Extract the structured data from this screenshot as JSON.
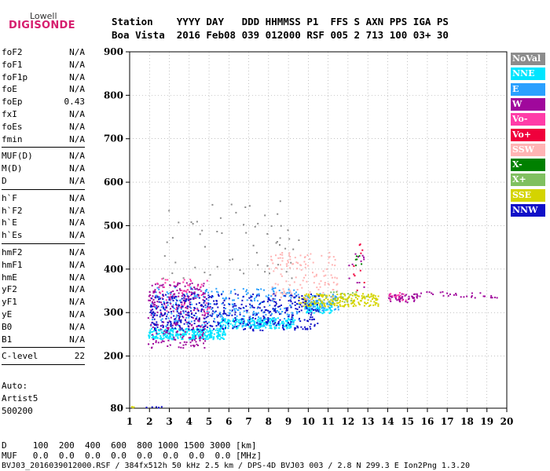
{
  "logo": {
    "top": "Lowell",
    "bottom": "DIGISONDE"
  },
  "header": {
    "row1": "Station    YYYY DAY   DDD HHMMSS P1  FFS S AXN PPS IGA PS",
    "row2": "Boa Vista  2016 Feb08 039 012000 RSF 005 2 713 100 03+ 30"
  },
  "params": [
    {
      "group": [
        {
          "name": "foF2",
          "value": "N/A"
        },
        {
          "name": "foF1",
          "value": "N/A"
        },
        {
          "name": "foF1p",
          "value": "N/A"
        },
        {
          "name": "foE",
          "value": "N/A"
        },
        {
          "name": "foEp",
          "value": "0.43"
        },
        {
          "name": "fxI",
          "value": "N/A"
        },
        {
          "name": "foEs",
          "value": "N/A"
        },
        {
          "name": "fmin",
          "value": "N/A"
        }
      ]
    },
    {
      "group": [
        {
          "name": "MUF(D)",
          "value": "N/A"
        },
        {
          "name": "M(D)",
          "value": "N/A"
        },
        {
          "name": "D",
          "value": "N/A"
        }
      ]
    },
    {
      "group": [
        {
          "name": "h`F",
          "value": "N/A"
        },
        {
          "name": "h`F2",
          "value": "N/A"
        },
        {
          "name": "h`E",
          "value": "N/A"
        },
        {
          "name": "h`Es",
          "value": "N/A"
        }
      ]
    },
    {
      "group": [
        {
          "name": "hmF2",
          "value": "N/A"
        },
        {
          "name": "hmF1",
          "value": "N/A"
        },
        {
          "name": "hmE",
          "value": "N/A"
        },
        {
          "name": "yF2",
          "value": "N/A"
        },
        {
          "name": "yF1",
          "value": "N/A"
        },
        {
          "name": "yE",
          "value": "N/A"
        },
        {
          "name": "B0",
          "value": "N/A"
        },
        {
          "name": "B1",
          "value": "N/A"
        }
      ]
    },
    {
      "group": [
        {
          "name": "C-level",
          "value": "22"
        }
      ]
    }
  ],
  "auto": {
    "line1": "Auto:",
    "line2": "Artist5",
    "line3": "500200"
  },
  "legend": [
    {
      "label": "NoVal",
      "bg": "#8c8c8c",
      "fg": "#ffffff"
    },
    {
      "label": "NNE",
      "bg": "#00e5ff",
      "fg": "#ffffff"
    },
    {
      "label": "E",
      "bg": "#2aa0ff",
      "fg": "#ffffff"
    },
    {
      "label": "W",
      "bg": "#a0089c",
      "fg": "#ffffff"
    },
    {
      "label": "Vo-",
      "bg": "#ff3ca8",
      "fg": "#ffffff"
    },
    {
      "label": "Vo+",
      "bg": "#f0003c",
      "fg": "#ffffff"
    },
    {
      "label": "SSW",
      "bg": "#ffb4b4",
      "fg": "#ffffff"
    },
    {
      "label": "X-",
      "bg": "#008000",
      "fg": "#ffffff"
    },
    {
      "label": "X+",
      "bg": "#80c060",
      "fg": "#ffffff"
    },
    {
      "label": "SSE",
      "bg": "#d4d400",
      "fg": "#ffffff"
    },
    {
      "label": "NNW",
      "bg": "#1010c8",
      "fg": "#ffffff"
    }
  ],
  "footer": {
    "line1": "D     100  200  400  600  800 1000 1500 3000 [km]",
    "line2": "MUF   0.0  0.0  0.0  0.0  0.0  0.0  0.0  0.0 [MHz]",
    "line3": "BVJ03_2016039012000.RSF / 384fx512h 50 kHz 2.5 km / DPS-4D BVJ03 003 / 2.8 N 299.3 E Ion2Png 1.3.20"
  },
  "chart_data": {
    "type": "scatter",
    "title": "",
    "xlabel": "",
    "ylabel": "",
    "xlim": [
      1,
      20
    ],
    "ylim": [
      80,
      900
    ],
    "x_ticks": [
      1,
      2,
      3,
      4,
      5,
      6,
      7,
      8,
      9,
      10,
      11,
      12,
      13,
      14,
      15,
      16,
      17,
      18,
      19,
      20
    ],
    "y_ticks": [
      80,
      200,
      300,
      400,
      500,
      600,
      700,
      800,
      900
    ],
    "grid": "dotted",
    "legend_placement": "right",
    "series": [
      {
        "name": "NNE",
        "color": "#00e5ff",
        "clusters": [
          {
            "x": [
              1.9,
              5.8
            ],
            "y": [
              240,
              265
            ],
            "n": 300
          },
          {
            "x": [
              5.5,
              9.3
            ],
            "y": [
              265,
              290
            ],
            "n": 220
          },
          {
            "x": [
              9.8,
              11.2
            ],
            "y": [
              300,
              325
            ],
            "n": 80
          }
        ]
      },
      {
        "name": "E",
        "color": "#2aa0ff",
        "clusters": [
          {
            "x": [
              2.0,
              9.5
            ],
            "y": [
              270,
              360
            ],
            "n": 320
          },
          {
            "x": [
              9.8,
              11.5
            ],
            "y": [
              305,
              345
            ],
            "n": 90
          }
        ]
      },
      {
        "name": "W",
        "color": "#a0089c",
        "clusters": [
          {
            "x": [
              1.9,
              4.8
            ],
            "y": [
              220,
              370
            ],
            "n": 260
          },
          {
            "x": [
              14.0,
              15.5
            ],
            "y": [
              325,
              345
            ],
            "n": 50
          },
          {
            "x": [
              15.5,
              19.5
            ],
            "y": [
              335,
              350
            ],
            "n": 30
          },
          {
            "x": [
              12.0,
              12.8
            ],
            "y": [
              360,
              440
            ],
            "n": 12
          }
        ]
      },
      {
        "name": "Vo-",
        "color": "#ff3ca8",
        "clusters": [
          {
            "x": [
              2.0,
              5.0
            ],
            "y": [
              300,
              380
            ],
            "n": 60
          },
          {
            "x": [
              14.0,
              15.2
            ],
            "y": [
              330,
              350
            ],
            "n": 15
          }
        ]
      },
      {
        "name": "Vo+",
        "color": "#f0003c",
        "clusters": [
          {
            "x": [
              12.2,
              12.8
            ],
            "y": [
              340,
              460
            ],
            "n": 10
          }
        ]
      },
      {
        "name": "SSW",
        "color": "#ffb4b4",
        "clusters": [
          {
            "x": [
              8.0,
              11.5
            ],
            "y": [
              330,
              440
            ],
            "n": 130
          }
        ]
      },
      {
        "name": "X-",
        "color": "#008000",
        "clusters": [
          {
            "x": [
              12.3,
              12.7
            ],
            "y": [
              400,
              440
            ],
            "n": 6
          }
        ]
      },
      {
        "name": "X+",
        "color": "#80c060",
        "clusters": [
          {
            "x": [
              11.0,
              13.0
            ],
            "y": [
              325,
              350
            ],
            "n": 25
          }
        ]
      },
      {
        "name": "SSE",
        "color": "#d4d400",
        "clusters": [
          {
            "x": [
              9.5,
              13.5
            ],
            "y": [
              315,
              345
            ],
            "n": 200
          },
          {
            "x": [
              1.0,
              1.2
            ],
            "y": [
              82,
              86
            ],
            "n": 3
          }
        ]
      },
      {
        "name": "NNW",
        "color": "#1010c8",
        "clusters": [
          {
            "x": [
              2.0,
              10.5
            ],
            "y": [
              260,
              345
            ],
            "n": 450
          },
          {
            "x": [
              1.8,
              3.0
            ],
            "y": [
              82,
              85
            ],
            "n": 6
          }
        ]
      },
      {
        "name": "NoVal",
        "color": "#8c8c8c",
        "clusters": [
          {
            "x": [
              2.5,
              9.5
            ],
            "y": [
              380,
              560
            ],
            "n": 60
          }
        ]
      }
    ]
  }
}
